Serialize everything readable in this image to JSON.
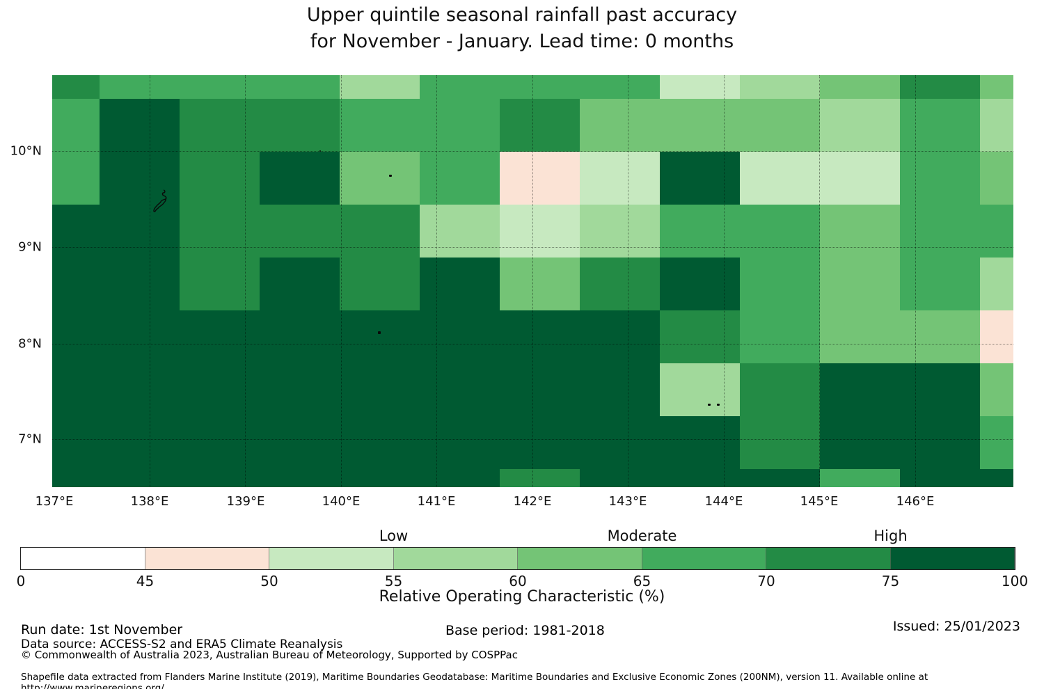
{
  "title": {
    "line1": "Upper quintile seasonal rainfall past accuracy",
    "line2": "for November - January. Lead time: 0 months"
  },
  "xlabel": "Relative Operating Characteristic (%)",
  "chart_data": {
    "type": "heatmap",
    "title": "Upper quintile seasonal rainfall past accuracy for November - January. Lead time: 0 months",
    "colorbar_label": "Relative Operating Characteristic (%)",
    "x_ticks": [
      "137°E",
      "138°E",
      "139°E",
      "140°E",
      "141°E",
      "142°E",
      "143°E",
      "144°E",
      "145°E",
      "146°E"
    ],
    "y_ticks": [
      "10°N",
      "9°N",
      "8°N",
      "7°N"
    ],
    "grid_on": true,
    "bins": [
      {
        "code": "W",
        "range": [
          0,
          45
        ],
        "color": "#ffffff"
      },
      {
        "code": "P",
        "range": [
          45,
          50
        ],
        "color": "#fbe3d5"
      },
      {
        "code": "G1",
        "range": [
          50,
          55
        ],
        "color": "#c7e9c0"
      },
      {
        "code": "G2",
        "range": [
          55,
          60
        ],
        "color": "#a1d99b"
      },
      {
        "code": "G3",
        "range": [
          60,
          65
        ],
        "color": "#74c476"
      },
      {
        "code": "G4",
        "range": [
          65,
          70
        ],
        "color": "#41ab5d"
      },
      {
        "code": "G5",
        "range": [
          70,
          75
        ],
        "color": "#238b45"
      },
      {
        "code": "G6",
        "range": [
          75,
          100
        ],
        "color": "#005a32"
      }
    ],
    "legend_categories": [
      {
        "label": "Low",
        "at_value": 55
      },
      {
        "label": "Moderate",
        "at_value": 65
      },
      {
        "label": "High",
        "at_value": 75
      }
    ],
    "colorbar_tick_values": [
      0,
      45,
      50,
      55,
      60,
      65,
      70,
      75,
      100
    ],
    "lon_edges": [
      137.0,
      137.49,
      138.33,
      139.17,
      140.01,
      140.84,
      141.68,
      142.51,
      143.35,
      144.19,
      145.02,
      145.86,
      146.69,
      147.04
    ],
    "lat_edges": [
      10.79,
      10.54,
      9.99,
      9.44,
      8.89,
      8.34,
      7.78,
      7.23,
      6.68,
      6.5
    ],
    "grid_codes": [
      [
        "G5",
        "G4",
        "G4",
        "G4",
        "G2",
        "G4",
        "G4",
        "G4",
        "G1",
        "G2",
        "G3",
        "G5",
        "G3"
      ],
      [
        "G4",
        "G6",
        "G5",
        "G5",
        "G4",
        "G4",
        "G5",
        "G3",
        "G3",
        "G3",
        "G2",
        "G4",
        "G2"
      ],
      [
        "G4",
        "G6",
        "G5",
        "G6",
        "G3",
        "G4",
        "P",
        "G1",
        "G6",
        "G1",
        "G1",
        "G4",
        "G3"
      ],
      [
        "G6",
        "G6",
        "G5",
        "G5",
        "G5",
        "G2",
        "G1",
        "G2",
        "G4",
        "G4",
        "G3",
        "G4",
        "G4"
      ],
      [
        "G6",
        "G6",
        "G5",
        "G6",
        "G5",
        "G6",
        "G3",
        "G5",
        "G6",
        "G4",
        "G3",
        "G4",
        "G2"
      ],
      [
        "G6",
        "G6",
        "G6",
        "G6",
        "G6",
        "G6",
        "G6",
        "G6",
        "G5",
        "G4",
        "G3",
        "G3",
        "P"
      ],
      [
        "G6",
        "G6",
        "G6",
        "G6",
        "G6",
        "G6",
        "G6",
        "G6",
        "G2",
        "G5",
        "G6",
        "G6",
        "G3"
      ],
      [
        "G6",
        "G6",
        "G6",
        "G6",
        "G6",
        "G6",
        "G6",
        "G6",
        "G6",
        "G5",
        "G6",
        "G6",
        "G4"
      ],
      [
        "G6",
        "G6",
        "G6",
        "G6",
        "G6",
        "G6",
        "G5",
        "G6",
        "G6",
        "G6",
        "G4",
        "G6",
        "G6"
      ]
    ],
    "map_features": [
      {
        "name": "palau-main-islands-outline",
        "kind": "outline"
      },
      {
        "name": "islet",
        "kind": "dot"
      },
      {
        "name": "islet",
        "kind": "dot"
      },
      {
        "name": "islet",
        "kind": "dot"
      },
      {
        "name": "islet",
        "kind": "dot"
      },
      {
        "name": "islet",
        "kind": "dot"
      }
    ]
  },
  "footer": {
    "run_date": "Run date: 1st November",
    "base_period": "Base period: 1981-2018",
    "issued": "Issued: 25/01/2023",
    "data_source": "Data source: ACCESS-S2 and ERA5 Climate Reanalysis",
    "copyright": "© Commonwealth of Australia 2023, Australian Bureau of Meteorology, Supported by COSPPac",
    "shapefile_note": "Shapefile data extracted from Flanders Marine Institute (2019), Maritime Boundaries Geodatabase: Maritime Boundaries and Exclusive Economic Zones (200NM), version 11. Available online at http://www.marineregions.org/."
  }
}
